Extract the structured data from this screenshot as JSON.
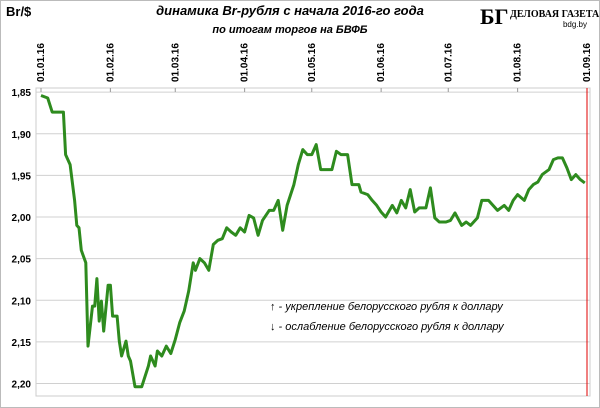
{
  "chart_data": {
    "type": "line",
    "title": "динамика Br-рубля с начала 2016-го года",
    "subtitle": "по итогам торгов на БВФБ",
    "y_label": "Br/$",
    "logo": {
      "mark": "БГ",
      "name": "ДЕЛОВАЯ ГАЗЕТА",
      "site": "bdg.by"
    },
    "annotations": [
      "↑ - укрепление белорусского рубля к доллару",
      "↓ - ослабление белорусского рубля к доллару"
    ],
    "y_inverted": true,
    "grid": true,
    "end_line_color": "#e00000",
    "xlim": [
      "2016-01-01",
      "2016-09-01"
    ],
    "ylim": [
      1.845,
      2.215
    ],
    "xticks": [
      {
        "value": "2016-01-01",
        "label": "01.01.16"
      },
      {
        "value": "2016-02-01",
        "label": "01.02.16"
      },
      {
        "value": "2016-03-01",
        "label": "01.03.16"
      },
      {
        "value": "2016-04-01",
        "label": "01.04.16"
      },
      {
        "value": "2016-05-01",
        "label": "01.05.16"
      },
      {
        "value": "2016-06-01",
        "label": "01.06.16"
      },
      {
        "value": "2016-07-01",
        "label": "01.07.16"
      },
      {
        "value": "2016-08-01",
        "label": "01.08.16"
      },
      {
        "value": "2016-09-01",
        "label": "01.09.16"
      }
    ],
    "yticks": [
      {
        "value": 1.85,
        "label": "1,85"
      },
      {
        "value": 1.9,
        "label": "1,90"
      },
      {
        "value": 1.95,
        "label": "1,95"
      },
      {
        "value": 2.0,
        "label": "2,00"
      },
      {
        "value": 2.05,
        "label": "2,05"
      },
      {
        "value": 2.1,
        "label": "2,10"
      },
      {
        "value": 2.15,
        "label": "2,15"
      },
      {
        "value": 2.2,
        "label": "2,20"
      }
    ],
    "x": [
      "2016-01-01",
      "2016-01-04",
      "2016-01-06",
      "2016-01-11",
      "2016-01-12",
      "2016-01-14",
      "2016-01-16",
      "2016-01-17",
      "2016-01-18",
      "2016-01-19",
      "2016-01-21",
      "2016-01-22",
      "2016-01-24",
      "2016-01-25",
      "2016-01-26",
      "2016-01-27",
      "2016-01-28",
      "2016-01-29",
      "2016-01-31",
      "2016-02-01",
      "2016-02-02",
      "2016-02-04",
      "2016-02-05",
      "2016-02-06",
      "2016-02-08",
      "2016-02-09",
      "2016-02-10",
      "2016-02-12",
      "2016-02-13",
      "2016-02-15",
      "2016-02-18",
      "2016-02-19",
      "2016-02-21",
      "2016-02-22",
      "2016-02-24",
      "2016-02-26",
      "2016-02-28",
      "2016-03-01",
      "2016-03-03",
      "2016-03-05",
      "2016-03-07",
      "2016-03-09",
      "2016-03-10",
      "2016-03-12",
      "2016-03-14",
      "2016-03-16",
      "2016-03-18",
      "2016-03-20",
      "2016-03-22",
      "2016-03-24",
      "2016-03-26",
      "2016-03-28",
      "2016-03-30",
      "2016-04-01",
      "2016-04-03",
      "2016-04-05",
      "2016-04-07",
      "2016-04-09",
      "2016-04-12",
      "2016-04-14",
      "2016-04-16",
      "2016-04-18",
      "2016-04-20",
      "2016-04-23",
      "2016-04-25",
      "2016-04-27",
      "2016-04-29",
      "2016-05-01",
      "2016-05-03",
      "2016-05-05",
      "2016-05-07",
      "2016-05-10",
      "2016-05-12",
      "2016-05-14",
      "2016-05-17",
      "2016-05-19",
      "2016-05-22",
      "2016-05-23",
      "2016-05-26",
      "2016-05-28",
      "2016-05-30",
      "2016-06-01",
      "2016-06-03",
      "2016-06-06",
      "2016-06-08",
      "2016-06-10",
      "2016-06-12",
      "2016-06-14",
      "2016-06-16",
      "2016-06-18",
      "2016-06-21",
      "2016-06-23",
      "2016-06-25",
      "2016-06-27",
      "2016-06-30",
      "2016-07-02",
      "2016-07-04",
      "2016-07-07",
      "2016-07-09",
      "2016-07-11",
      "2016-07-14",
      "2016-07-16",
      "2016-07-19",
      "2016-07-21",
      "2016-07-23",
      "2016-07-26",
      "2016-07-28",
      "2016-07-30",
      "2016-08-01",
      "2016-08-04",
      "2016-08-06",
      "2016-08-08",
      "2016-08-10",
      "2016-08-12",
      "2016-08-15",
      "2016-08-17",
      "2016-08-19",
      "2016-08-21",
      "2016-08-23",
      "2016-08-25",
      "2016-08-27",
      "2016-08-29",
      "2016-08-31"
    ],
    "series": [
      {
        "color": "#2e8b1e",
        "values": [
          1.854,
          1.857,
          1.874,
          1.874,
          1.925,
          1.937,
          1.98,
          2.01,
          2.013,
          2.04,
          2.055,
          2.155,
          2.107,
          2.107,
          2.074,
          2.125,
          2.101,
          2.137,
          2.082,
          2.082,
          2.119,
          2.119,
          2.149,
          2.167,
          2.149,
          2.167,
          2.173,
          2.204,
          2.204,
          2.204,
          2.179,
          2.167,
          2.179,
          2.161,
          2.167,
          2.155,
          2.164,
          2.147,
          2.127,
          2.113,
          2.089,
          2.055,
          2.064,
          2.05,
          2.055,
          2.064,
          2.033,
          2.028,
          2.026,
          2.013,
          2.018,
          2.022,
          2.013,
          2.018,
          1.998,
          2.001,
          2.022,
          2.004,
          1.992,
          1.992,
          1.98,
          2.016,
          1.986,
          1.961,
          1.937,
          1.919,
          1.925,
          1.925,
          1.913,
          1.943,
          1.943,
          1.943,
          1.921,
          1.925,
          1.925,
          1.961,
          1.961,
          1.97,
          1.973,
          1.98,
          1.986,
          1.994,
          2.0,
          1.986,
          1.995,
          1.98,
          1.989,
          1.967,
          1.994,
          1.989,
          1.989,
          1.965,
          2.001,
          2.006,
          2.006,
          2.004,
          1.995,
          2.01,
          2.006,
          2.01,
          2.001,
          1.98,
          1.98,
          1.986,
          1.992,
          1.986,
          1.992,
          1.98,
          1.973,
          1.98,
          1.967,
          1.961,
          1.958,
          1.949,
          1.943,
          1.931,
          1.929,
          1.929,
          1.941,
          1.955,
          1.949,
          1.955,
          1.959
        ]
      }
    ]
  }
}
